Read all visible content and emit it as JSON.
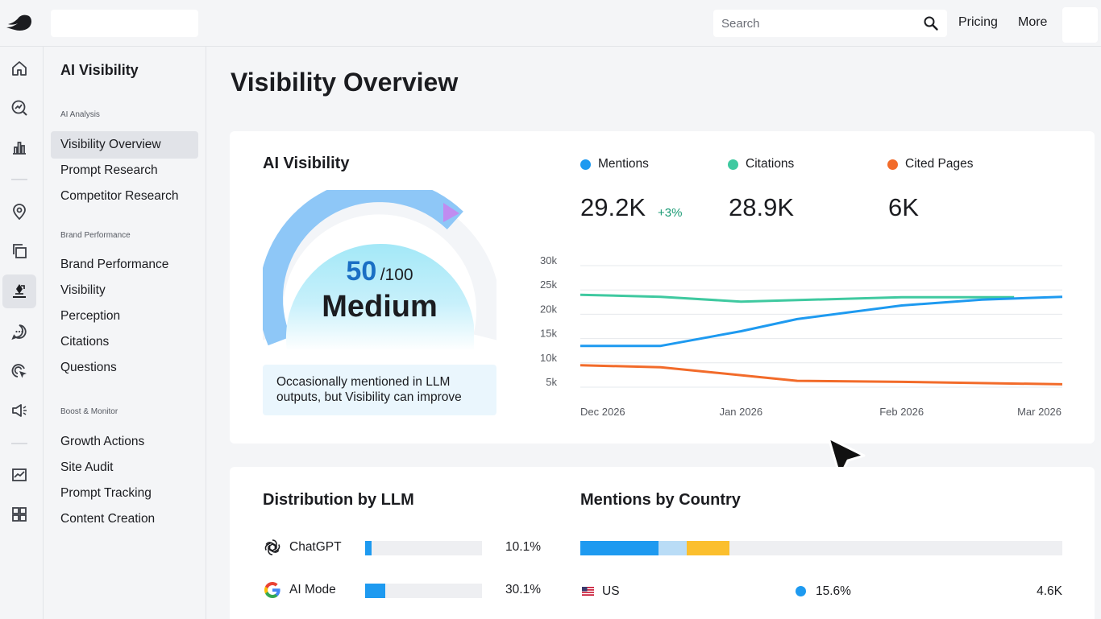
{
  "topbar": {
    "search_placeholder": "Search",
    "links": [
      "Pricing",
      "More"
    ]
  },
  "rail": {
    "icons": [
      "home-icon",
      "analytics-icon",
      "bar-chart-icon",
      "location-pin-icon",
      "copy-icon",
      "ai-pen-icon",
      "chat-icon",
      "target-cursor-icon",
      "megaphone-icon",
      "trend-chart-icon",
      "apps-grid-icon"
    ],
    "active": "ai-pen-icon"
  },
  "subnav": {
    "title": "AI Visibility",
    "sections": [
      {
        "label": "AI Analysis",
        "items": [
          "Visibility Overview",
          "Prompt Research",
          "Competitor Research"
        ]
      },
      {
        "label": "Brand Performance",
        "items": [
          "Brand Performance",
          "Visibility",
          "Perception",
          "Citations",
          "Questions"
        ]
      },
      {
        "label": "Boost & Monitor",
        "items": [
          "Growth Actions",
          "Site Audit",
          "Prompt Tracking",
          "Content Creation"
        ]
      }
    ],
    "active_item": "Visibility Overview"
  },
  "page": {
    "title": "Visibility Overview"
  },
  "ai_visibility": {
    "title": "AI Visibility",
    "score": "50",
    "score_max": "/100",
    "level": "Medium",
    "score_fraction": 0.5,
    "note": "Occasionally mentioned in LLM outputs, but Visibility can improve"
  },
  "metrics": [
    {
      "label": "Mentions",
      "value": "29.2K",
      "change": "+3%",
      "color": "#1e9af0"
    },
    {
      "label": "Citations",
      "value": "28.9K",
      "change": "",
      "color": "#3fc9a0"
    },
    {
      "label": "Cited Pages",
      "value": "6K",
      "change": "",
      "color": "#f26b2a"
    }
  ],
  "chart_data": {
    "type": "line",
    "x": [
      "Dec 2026",
      "Jan 2026",
      "Feb 2026",
      "Mar 2026"
    ],
    "y_ticks": [
      "30k",
      "25k",
      "20k",
      "15k",
      "10k",
      "5k"
    ],
    "ylim": [
      5000,
      30000
    ],
    "grid": true,
    "series": [
      {
        "color": "#3fc9a0",
        "points": [
          [
            0,
            24000
          ],
          [
            0.5,
            23600
          ],
          [
            1,
            22600
          ],
          [
            2,
            23500
          ],
          [
            2.7,
            23500
          ]
        ]
      },
      {
        "color": "#1e9af0",
        "points": [
          [
            0,
            13500
          ],
          [
            0.5,
            13500
          ],
          [
            1,
            16500
          ],
          [
            1.35,
            19000
          ],
          [
            2,
            21800
          ],
          [
            2.5,
            23000
          ],
          [
            3,
            23600
          ]
        ]
      },
      {
        "color": "#f26b2a",
        "points": [
          [
            0,
            9500
          ],
          [
            0.5,
            9100
          ],
          [
            1.35,
            6300
          ],
          [
            2,
            6100
          ],
          [
            3,
            5600
          ]
        ]
      }
    ]
  },
  "distribution": {
    "title": "Distribution by LLM",
    "rows": [
      {
        "name": "ChatGPT",
        "pct": "10.1%",
        "fraction": 0.101,
        "icon": "chatgpt-logo-icon"
      },
      {
        "name": "AI Mode",
        "pct": "30.1%",
        "fraction": 0.301,
        "icon": "google-logo-icon"
      }
    ]
  },
  "countries": {
    "title": "Mentions by Country",
    "segments": [
      {
        "fraction": 0.163,
        "color": "#1e9af0"
      },
      {
        "fraction": 0.058,
        "color": "#b9dcf6"
      },
      {
        "fraction": 0.088,
        "color": "#fbbf2e"
      }
    ],
    "rows": [
      {
        "name": "US",
        "pct": "15.6%",
        "value": "4.6K",
        "icon": "us-flag-icon"
      }
    ]
  }
}
